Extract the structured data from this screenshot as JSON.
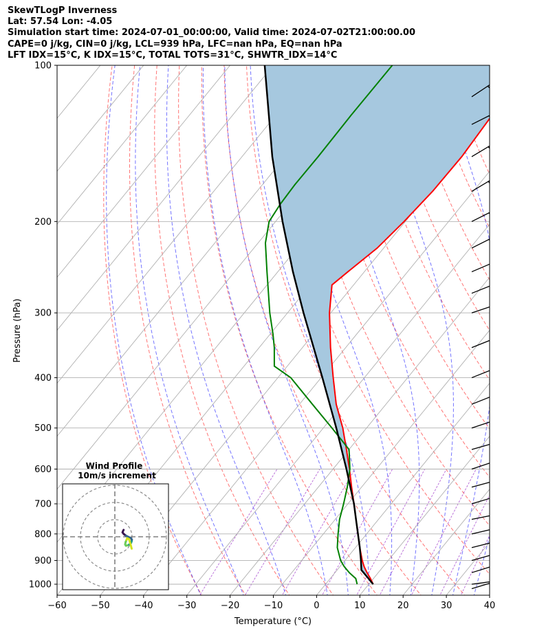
{
  "header": {
    "line1": "SkewTLogP Inverness",
    "line2": "Lat: 57.54   Lon: -4.05",
    "line3": "Simulation start time: 2024-07-01_00:00:00, Valid time: 2024-07-02T21:00:00.00",
    "line4": "CAPE=0 j/kg, CIN=0 j/kg, LCL=939 hPa, LFC=nan hPa, EQ=nan hPa",
    "line5": "LFT IDX=15$^\\circ$C, K IDX=15$^\\circ$C, TOTAL TOTS=31$^\\circ$C, SHWTR_IDX=14$^\\circ$C"
  },
  "chart_data": {
    "type": "line",
    "xlabel": "Temperature ($^\\circ$C)",
    "ylabel": "Pressure (hPa)",
    "xlim": [
      -60,
      40
    ],
    "ylim": [
      1050,
      100
    ],
    "y_scale": "log",
    "x_ticks": [
      "−60",
      "−50",
      "−40",
      "−30",
      "−20",
      "−10",
      "0",
      "10",
      "20",
      "30",
      "40"
    ],
    "x_tick_values": [
      -60,
      -50,
      -40,
      -30,
      -20,
      -10,
      0,
      10,
      20,
      30,
      40
    ],
    "y_ticks": [
      "1000",
      "900",
      "800",
      "700",
      "600",
      "500",
      "400",
      "300",
      "200",
      "100"
    ],
    "y_tick_values": [
      1000,
      900,
      800,
      700,
      600,
      500,
      400,
      300,
      200,
      100
    ],
    "grid": true,
    "skew": true,
    "series": [
      {
        "role": "temperature",
        "color": "#ff0000",
        "p": [
          1000,
          975,
          950,
          925,
          900,
          850,
          800,
          750,
          700,
          650,
          600,
          550,
          500,
          450,
          400,
          350,
          300,
          265,
          250,
          225,
          200,
          175,
          150,
          125,
          110,
          100
        ],
        "t": [
          11.0,
          9.3,
          7.4,
          5.6,
          4.0,
          1.0,
          -2.0,
          -5.2,
          -8.6,
          -12.3,
          -16.2,
          -20.6,
          -25.5,
          -31.5,
          -37.2,
          -43.5,
          -50.3,
          -55.0,
          -53.8,
          -51.5,
          -50.3,
          -49.4,
          -49.2,
          -50.0,
          -50.5,
          -52.5
        ]
      },
      {
        "role": "dewpoint",
        "color": "#008000",
        "p": [
          1000,
          975,
          950,
          925,
          900,
          850,
          800,
          750,
          700,
          650,
          600,
          550,
          500,
          450,
          400,
          380,
          350,
          330,
          300,
          250,
          220,
          200,
          185,
          170,
          150,
          125,
          100
        ],
        "td": [
          7.3,
          5.9,
          3.3,
          1.0,
          -1.0,
          -4.2,
          -6.6,
          -9.0,
          -11.0,
          -13.3,
          -16.1,
          -20.0,
          -28.0,
          -37.0,
          -47.0,
          -53.0,
          -56.5,
          -59.3,
          -64.1,
          -72.5,
          -78.3,
          -81.5,
          -82.2,
          -82.5,
          -82.4,
          -82.6,
          -82.5
        ]
      },
      {
        "role": "parcel",
        "color": "#000000",
        "note": "parcel profile from surface",
        "p": [
          1000,
          970,
          939,
          900,
          850,
          800,
          750,
          700,
          600,
          500,
          400,
          300,
          250,
          200,
          150,
          100
        ],
        "t": [
          11.0,
          8.4,
          5.6,
          3.7,
          1.0,
          -2.0,
          -5.2,
          -8.6,
          -16.9,
          -27.0,
          -39.7,
          -56.3,
          -66.5,
          -78.4,
          -93.0,
          -112.0
        ]
      }
    ],
    "cin_shading": {
      "color": "#a6c8df",
      "between": [
        "temperature",
        "parcel"
      ]
    },
    "wind_barbs": {
      "color": "#000000",
      "x_position": "right edge",
      "p": [
        1020,
        1000,
        950,
        900,
        850,
        800,
        750,
        700,
        650,
        600,
        550,
        500,
        450,
        400,
        350,
        300,
        275,
        250,
        225,
        200,
        175,
        150,
        130,
        115,
        100
      ],
      "u_kt": [
        -10,
        -15,
        -16,
        -18,
        -16,
        -13,
        -10,
        -10,
        -11,
        -9,
        -7,
        -6,
        -5,
        -5,
        -5,
        -6,
        -5,
        -7,
        -6,
        -6,
        -5,
        -5,
        -4,
        -3,
        -2
      ],
      "v_kt": [
        -3,
        -2,
        -5,
        -5,
        -4,
        -3,
        -2,
        -3,
        -3,
        -3,
        -2,
        -2,
        -2,
        -2,
        -2,
        -2,
        -2,
        -3,
        -3,
        -3,
        -3,
        -3,
        -2,
        -2,
        -2
      ]
    },
    "inset": {
      "title_line1": "Wind Profile",
      "title_line2": "10m/s increment",
      "type": "hodograph",
      "rings_ms": [
        10,
        20,
        30
      ],
      "colors": [
        "#3b1651",
        "#33638d",
        "#1f9d8a",
        "#6ccd5a",
        "#d2e21b"
      ],
      "u": [
        -6.9,
        -7.3,
        -7.5,
        -6.8,
        -5.5,
        -3.9,
        -2.6,
        -2.1,
        -2.2,
        -2.6,
        -3.5,
        -4.6,
        -5.6,
        -6.0,
        -5.7,
        -5.2,
        -4.8,
        -3.7,
        -2.2
      ],
      "v": [
        4.0,
        3.2,
        2.5,
        1.6,
        0.6,
        -0.2,
        -0.9,
        -1.7,
        -2.6,
        -3.6,
        -4.5,
        -5.0,
        -5.2,
        -4.4,
        -3.0,
        -1.8,
        -0.8,
        -1.4,
        -6.9
      ]
    }
  }
}
